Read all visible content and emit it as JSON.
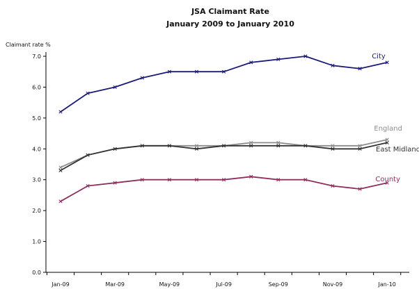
{
  "chart_data": {
    "type": "line",
    "title": "JSA Claimant Rate",
    "subtitle": "January 2009 to January 2010",
    "ylabel": "Claimant rate %",
    "xlabel": "",
    "ylim": [
      0,
      7
    ],
    "y_ticks": [
      "0.0",
      "1.0",
      "2.0",
      "3.0",
      "4.0",
      "5.0",
      "6.0",
      "7.0"
    ],
    "categories": [
      "Jan-09",
      "Feb-09",
      "Mar-09",
      "Apr-09",
      "May-09",
      "Jun-09",
      "Jul-09",
      "Aug-09",
      "Sep-09",
      "Oct-09",
      "Nov-09",
      "Dec-09",
      "Jan-10"
    ],
    "x_tick_labels": [
      "Jan-09",
      "Mar-09",
      "May-09",
      "Jul-09",
      "Sep-09",
      "Nov-09",
      "Jan-10"
    ],
    "grid": false,
    "legend": "inline-right",
    "series": [
      {
        "name": "City",
        "color": "#1a1a78",
        "values": [
          5.2,
          5.8,
          6.0,
          6.3,
          6.5,
          6.5,
          6.5,
          6.8,
          6.9,
          7.0,
          6.7,
          6.6,
          6.8
        ]
      },
      {
        "name": "England",
        "color": "#8c8c8c",
        "values": [
          3.4,
          3.8,
          4.0,
          4.1,
          4.1,
          4.1,
          4.1,
          4.2,
          4.2,
          4.1,
          4.1,
          4.1,
          4.3
        ]
      },
      {
        "name": "East Midlands",
        "color": "#333333",
        "values": [
          3.3,
          3.8,
          4.0,
          4.1,
          4.1,
          4.0,
          4.1,
          4.1,
          4.1,
          4.1,
          4.0,
          4.0,
          4.2
        ]
      },
      {
        "name": "County",
        "color": "#8f2d5f",
        "values": [
          2.3,
          2.8,
          2.9,
          3.0,
          3.0,
          3.0,
          3.0,
          3.1,
          3.0,
          3.0,
          2.8,
          2.7,
          2.9
        ]
      }
    ]
  }
}
